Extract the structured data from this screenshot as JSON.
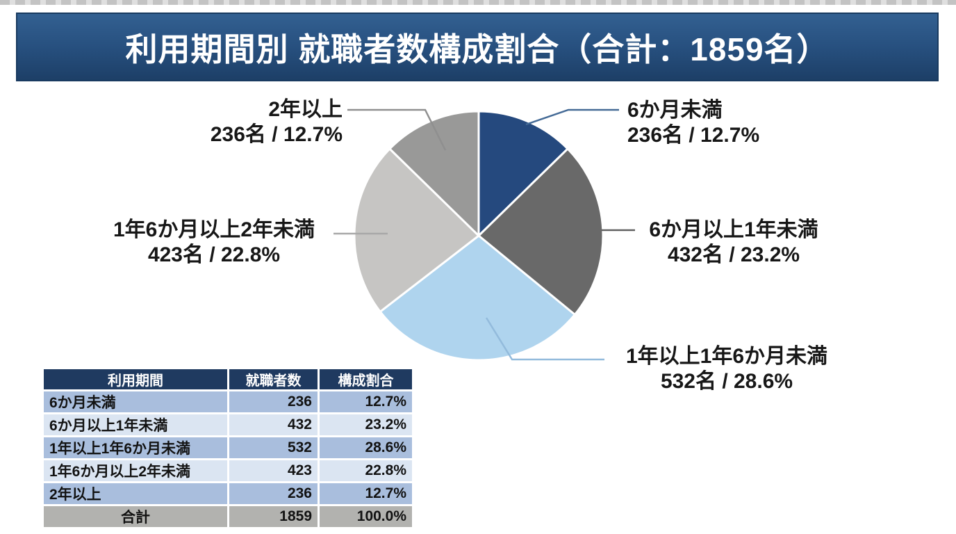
{
  "header": {
    "title": "利用期間別 就職者数構成割合（合計：1859名）"
  },
  "chart_data": {
    "type": "pie",
    "title": "利用期間別 就職者数構成割合",
    "total": 1859,
    "total_label": "合計：1859名",
    "unit": "名",
    "start_angle_deg": 0,
    "direction": "clockwise",
    "legend_position": "callout-labels",
    "categories": [
      "6か月未満",
      "6か月以上1年未満",
      "1年以上1年6か月未満",
      "1年6か月以上2年未満",
      "2年以上"
    ],
    "values": [
      236,
      432,
      532,
      423,
      236
    ],
    "percents": [
      12.7,
      23.2,
      28.6,
      22.8,
      12.7
    ],
    "colors": [
      "#25497E",
      "#696969",
      "#AFD4EE",
      "#C6C5C3",
      "#999998"
    ],
    "leader_colors": [
      "#446A96",
      "#606060",
      "#93BBDC",
      "#A8A8A8",
      "#8F8F8F"
    ]
  },
  "callouts": [
    {
      "line1": "6か月未満",
      "line2": "236名 / 12.7%"
    },
    {
      "line1": "6か月以上1年未満",
      "line2": "432名 / 23.2%"
    },
    {
      "line1": "1年以上1年6か月未満",
      "line2": "532名 / 28.6%"
    },
    {
      "line1": "1年6か月以上2年未満",
      "line2": "423名 / 22.8%"
    },
    {
      "line1": "2年以上",
      "line2": "236名 / 12.7%"
    }
  ],
  "table": {
    "headers": [
      "利用期間",
      "就職者数",
      "構成割合"
    ],
    "rows": [
      {
        "label": "6か月未満",
        "count": "236",
        "pct": "12.7%"
      },
      {
        "label": "6か月以上1年未満",
        "count": "432",
        "pct": "23.2%"
      },
      {
        "label": "1年以上1年6か月未満",
        "count": "532",
        "pct": "28.6%"
      },
      {
        "label": "1年6か月以上2年未満",
        "count": "423",
        "pct": "22.8%"
      },
      {
        "label": "2年以上",
        "count": "236",
        "pct": "12.7%"
      }
    ],
    "total": {
      "label": "合計",
      "count": "1859",
      "pct": "100.0%"
    }
  },
  "colors": {
    "banner_top": "#336091",
    "banner_bottom": "#1d3f67",
    "table_header_bg": "#1f3a60",
    "table_row_odd": "#a9bedd",
    "table_row_even": "#dbe5f2",
    "table_total_bg": "#b2b2af",
    "background": "#ffffff"
  }
}
